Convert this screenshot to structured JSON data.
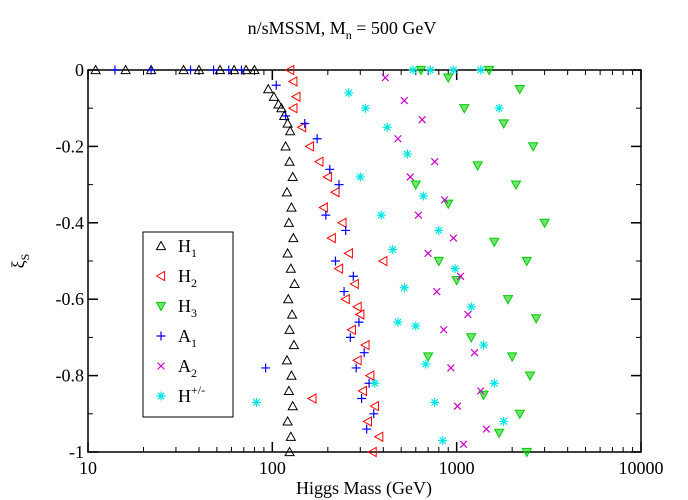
{
  "title": {
    "main": "n/sMSSM, M",
    "sub": "n",
    "rest": " = 500 GeV"
  },
  "colors": {
    "H1": "#000000",
    "H2": "#ff0000",
    "H3": "#00cc00",
    "A1": "#0000ff",
    "A2": "#cc00cc",
    "Hpm": "#00e5e5"
  },
  "chart_data": {
    "type": "scatter",
    "xlabel": "Higgs Mass (GeV)",
    "ylabel_main": "ξ",
    "ylabel_sub": "S",
    "xscale": "log",
    "xlim": [
      10,
      10000
    ],
    "ylim": [
      -1,
      0
    ],
    "xticks": [
      10,
      100,
      1000,
      10000
    ],
    "xtick_labels": [
      "10",
      "100",
      "1000",
      "10000"
    ],
    "yticks": [
      0,
      -0.2,
      -0.4,
      -0.6,
      -0.8,
      -1
    ],
    "ytick_labels": [
      "0",
      "-0.2",
      "-0.4",
      "-0.6",
      "-0.8",
      "-1"
    ],
    "grid": false,
    "legend_position": "center-left",
    "series": [
      {
        "name": "H",
        "sub": "1",
        "sup": "",
        "marker": "triangle-up",
        "color_key": "H1",
        "points": [
          [
            11,
            0
          ],
          [
            16,
            0
          ],
          [
            22,
            0
          ],
          [
            33,
            0
          ],
          [
            40,
            0
          ],
          [
            52,
            0
          ],
          [
            62,
            0
          ],
          [
            72,
            0
          ],
          [
            80,
            0
          ],
          [
            95,
            -0.05
          ],
          [
            102,
            -0.07
          ],
          [
            108,
            -0.09
          ],
          [
            112,
            -0.1
          ],
          [
            116,
            -0.12
          ],
          [
            121,
            -0.14
          ],
          [
            125,
            -0.16
          ],
          [
            118,
            -0.2
          ],
          [
            124,
            -0.24
          ],
          [
            129,
            -0.28
          ],
          [
            120,
            -0.32
          ],
          [
            127,
            -0.36
          ],
          [
            123,
            -0.4
          ],
          [
            130,
            -0.44
          ],
          [
            121,
            -0.48
          ],
          [
            126,
            -0.52
          ],
          [
            132,
            -0.56
          ],
          [
            122,
            -0.6
          ],
          [
            128,
            -0.64
          ],
          [
            124,
            -0.68
          ],
          [
            131,
            -0.72
          ],
          [
            120,
            -0.76
          ],
          [
            127,
            -0.8
          ],
          [
            123,
            -0.84
          ],
          [
            129,
            -0.88
          ],
          [
            121,
            -0.92
          ],
          [
            126,
            -0.96
          ],
          [
            124,
            -1.0
          ]
        ]
      },
      {
        "name": "H",
        "sub": "2",
        "sup": "",
        "marker": "triangle-left",
        "color_key": "H2",
        "points": [
          [
            125,
            0
          ],
          [
            130,
            -0.03
          ],
          [
            135,
            -0.07
          ],
          [
            130,
            -0.1
          ],
          [
            145,
            -0.15
          ],
          [
            160,
            -0.2
          ],
          [
            180,
            -0.24
          ],
          [
            200,
            -0.28
          ],
          [
            220,
            -0.32
          ],
          [
            190,
            -0.36
          ],
          [
            240,
            -0.4
          ],
          [
            210,
            -0.44
          ],
          [
            260,
            -0.48
          ],
          [
            230,
            -0.52
          ],
          [
            280,
            -0.56
          ],
          [
            250,
            -0.6
          ],
          [
            300,
            -0.64
          ],
          [
            270,
            -0.68
          ],
          [
            320,
            -0.72
          ],
          [
            290,
            -0.76
          ],
          [
            340,
            -0.8
          ],
          [
            310,
            -0.84
          ],
          [
            360,
            -0.88
          ],
          [
            330,
            -0.92
          ],
          [
            380,
            -0.96
          ],
          [
            350,
            -1.0
          ],
          [
            165,
            -0.86
          ],
          [
            290,
            -0.62
          ],
          [
            400,
            -0.5
          ]
        ]
      },
      {
        "name": "H",
        "sub": "3",
        "sup": "",
        "marker": "triangle-down",
        "color_key": "H3",
        "points": [
          [
            640,
            0
          ],
          [
            900,
            -0.02
          ],
          [
            1500,
            0
          ],
          [
            2200,
            -0.05
          ],
          [
            1100,
            -0.1
          ],
          [
            1800,
            -0.14
          ],
          [
            2600,
            -0.2
          ],
          [
            1300,
            -0.25
          ],
          [
            2100,
            -0.3
          ],
          [
            3000,
            -0.4
          ],
          [
            900,
            -0.35
          ],
          [
            1600,
            -0.45
          ],
          [
            2400,
            -0.5
          ],
          [
            1000,
            -0.55
          ],
          [
            1900,
            -0.6
          ],
          [
            2700,
            -0.65
          ],
          [
            1200,
            -0.7
          ],
          [
            2000,
            -0.75
          ],
          [
            2500,
            -0.8
          ],
          [
            1400,
            -0.85
          ],
          [
            2200,
            -0.9
          ],
          [
            1700,
            -0.95
          ],
          [
            2400,
            -1.0
          ],
          [
            700,
            -0.75
          ],
          [
            800,
            -0.5
          ],
          [
            600,
            -0.3
          ]
        ]
      },
      {
        "name": "A",
        "sub": "1",
        "sup": "",
        "marker": "plus",
        "color_key": "A1",
        "points": [
          [
            14,
            0
          ],
          [
            22,
            0
          ],
          [
            36,
            0
          ],
          [
            48,
            0
          ],
          [
            58,
            0
          ],
          [
            68,
            0
          ],
          [
            105,
            -0.04
          ],
          [
            118,
            -0.12
          ],
          [
            150,
            -0.14
          ],
          [
            175,
            -0.18
          ],
          [
            205,
            -0.26
          ],
          [
            230,
            -0.3
          ],
          [
            195,
            -0.38
          ],
          [
            250,
            -0.42
          ],
          [
            220,
            -0.5
          ],
          [
            275,
            -0.54
          ],
          [
            245,
            -0.58
          ],
          [
            295,
            -0.66
          ],
          [
            265,
            -0.7
          ],
          [
            315,
            -0.74
          ],
          [
            285,
            -0.78
          ],
          [
            335,
            -0.82
          ],
          [
            305,
            -0.86
          ],
          [
            355,
            -0.9
          ],
          [
            325,
            -0.94
          ],
          [
            92,
            -0.78
          ]
        ]
      },
      {
        "name": "A",
        "sub": "2",
        "sup": "",
        "marker": "cross",
        "color_key": "A2",
        "points": [
          [
            410,
            -0.02
          ],
          [
            520,
            -0.08
          ],
          [
            650,
            -0.13
          ],
          [
            480,
            -0.18
          ],
          [
            760,
            -0.24
          ],
          [
            560,
            -0.28
          ],
          [
            860,
            -0.34
          ],
          [
            620,
            -0.38
          ],
          [
            960,
            -0.44
          ],
          [
            700,
            -0.48
          ],
          [
            1050,
            -0.54
          ],
          [
            780,
            -0.58
          ],
          [
            1150,
            -0.64
          ],
          [
            850,
            -0.68
          ],
          [
            1250,
            -0.74
          ],
          [
            930,
            -0.78
          ],
          [
            1350,
            -0.84
          ],
          [
            1010,
            -0.88
          ],
          [
            1450,
            -0.94
          ],
          [
            1090,
            -0.98
          ]
        ]
      },
      {
        "name": "H",
        "sub": "",
        "sup": "+/-",
        "marker": "star",
        "color_key": "Hpm",
        "points": [
          [
            580,
            0
          ],
          [
            720,
            0
          ],
          [
            960,
            0
          ],
          [
            1350,
            0
          ],
          [
            260,
            -0.06
          ],
          [
            320,
            -0.1
          ],
          [
            420,
            -0.15
          ],
          [
            540,
            -0.22
          ],
          [
            300,
            -0.28
          ],
          [
            660,
            -0.33
          ],
          [
            390,
            -0.38
          ],
          [
            800,
            -0.42
          ],
          [
            450,
            -0.47
          ],
          [
            980,
            -0.52
          ],
          [
            520,
            -0.57
          ],
          [
            1200,
            -0.62
          ],
          [
            600,
            -0.67
          ],
          [
            1400,
            -0.72
          ],
          [
            680,
            -0.77
          ],
          [
            1600,
            -0.82
          ],
          [
            760,
            -0.87
          ],
          [
            1800,
            -0.92
          ],
          [
            840,
            -0.97
          ],
          [
            480,
            -0.66
          ],
          [
            360,
            -0.82
          ],
          [
            82,
            -0.87
          ],
          [
            1700,
            -0.1
          ]
        ]
      }
    ]
  }
}
